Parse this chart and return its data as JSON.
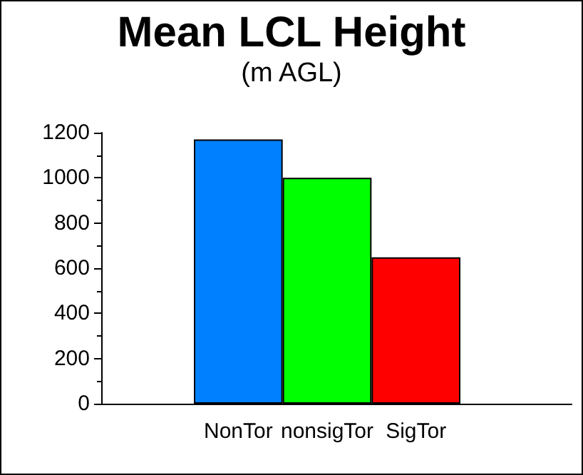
{
  "chart_data": {
    "type": "bar",
    "title": "Mean LCL Height",
    "subtitle": "(m AGL)",
    "categories": [
      "NonTor",
      "nonsigTor",
      "SigTor"
    ],
    "values": [
      1170,
      1000,
      648
    ],
    "colors": [
      "#0080ff",
      "#00ff00",
      "#ff0000"
    ],
    "ylim": [
      0,
      1200
    ],
    "yticks": [
      0,
      200,
      400,
      600,
      800,
      1000,
      1200
    ],
    "grid": false
  }
}
